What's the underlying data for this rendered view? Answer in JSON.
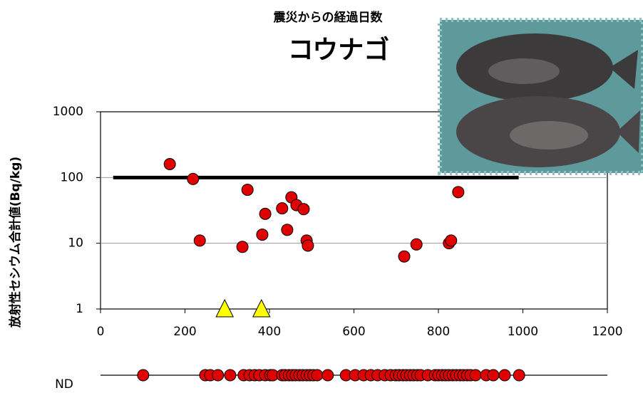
{
  "chart_data": {
    "type": "scatter",
    "title": "震災からの経過日数",
    "subtitle": "コウナゴ",
    "y_label": "放射性セシウム合計値(Bq/kg)",
    "xlim": [
      0,
      1200
    ],
    "xticks": [
      0,
      200,
      400,
      600,
      800,
      1000,
      1200
    ],
    "ylim": [
      1,
      1000
    ],
    "yticks": [
      1,
      10,
      100,
      1000
    ],
    "log_y": true,
    "grid": true,
    "series": [
      {
        "marker": "line",
        "color": "#000000",
        "x": [
          30,
          990
        ],
        "values": [
          100,
          100
        ]
      },
      {
        "marker": "circle",
        "color": "#e00000",
        "x": [
          164,
          219,
          235,
          336,
          348,
          383,
          390,
          430,
          442,
          452,
          464,
          481,
          488,
          491,
          719,
          748,
          825,
          830,
          847
        ],
        "values": [
          160,
          95,
          11,
          8.8,
          65,
          13.5,
          28,
          34,
          16,
          50,
          38,
          33,
          11,
          9.2,
          6.3,
          9.6,
          10,
          11,
          60
        ]
      },
      {
        "marker": "triangle",
        "color": "#ffff00",
        "x": [
          294,
          381
        ],
        "values": [
          1,
          1
        ]
      }
    ],
    "nd_row": {
      "label": "ND",
      "color": "#e00000",
      "x": [
        101,
        248,
        260,
        278,
        307,
        339,
        353,
        365,
        376,
        390,
        402,
        408,
        430,
        437,
        446,
        454,
        462,
        471,
        479,
        488,
        496,
        504,
        513,
        538,
        581,
        603,
        623,
        640,
        656,
        673,
        687,
        699,
        707,
        716,
        724,
        733,
        741,
        750,
        758,
        775,
        792,
        800,
        809,
        817,
        825,
        834,
        842,
        851,
        859,
        868,
        876,
        888,
        913,
        930,
        957,
        991
      ]
    }
  }
}
